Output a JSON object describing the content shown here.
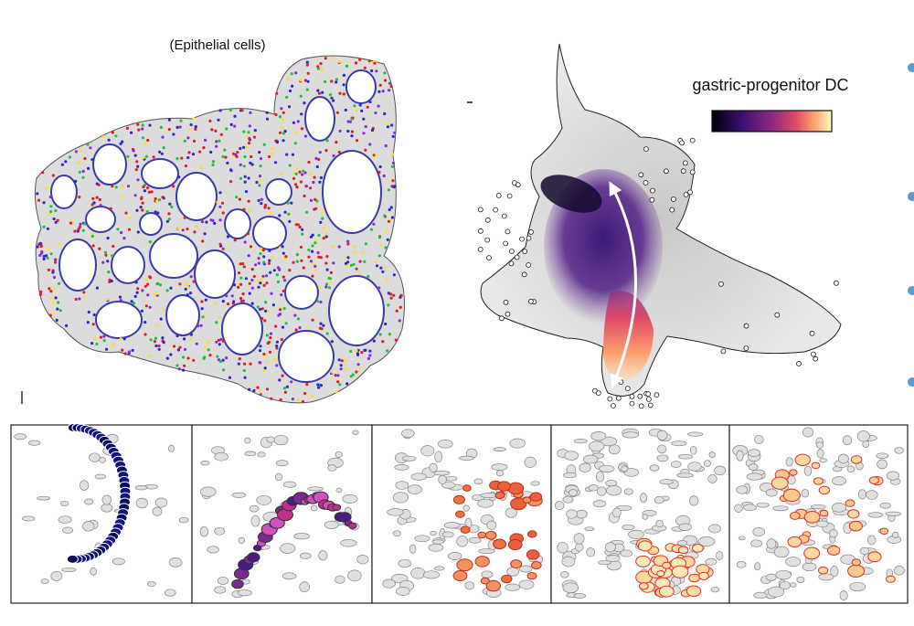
{
  "figure": {
    "left_label": "(Epithelial cells)",
    "colorbar_label": "gastric-progenitor DC"
  }
}
